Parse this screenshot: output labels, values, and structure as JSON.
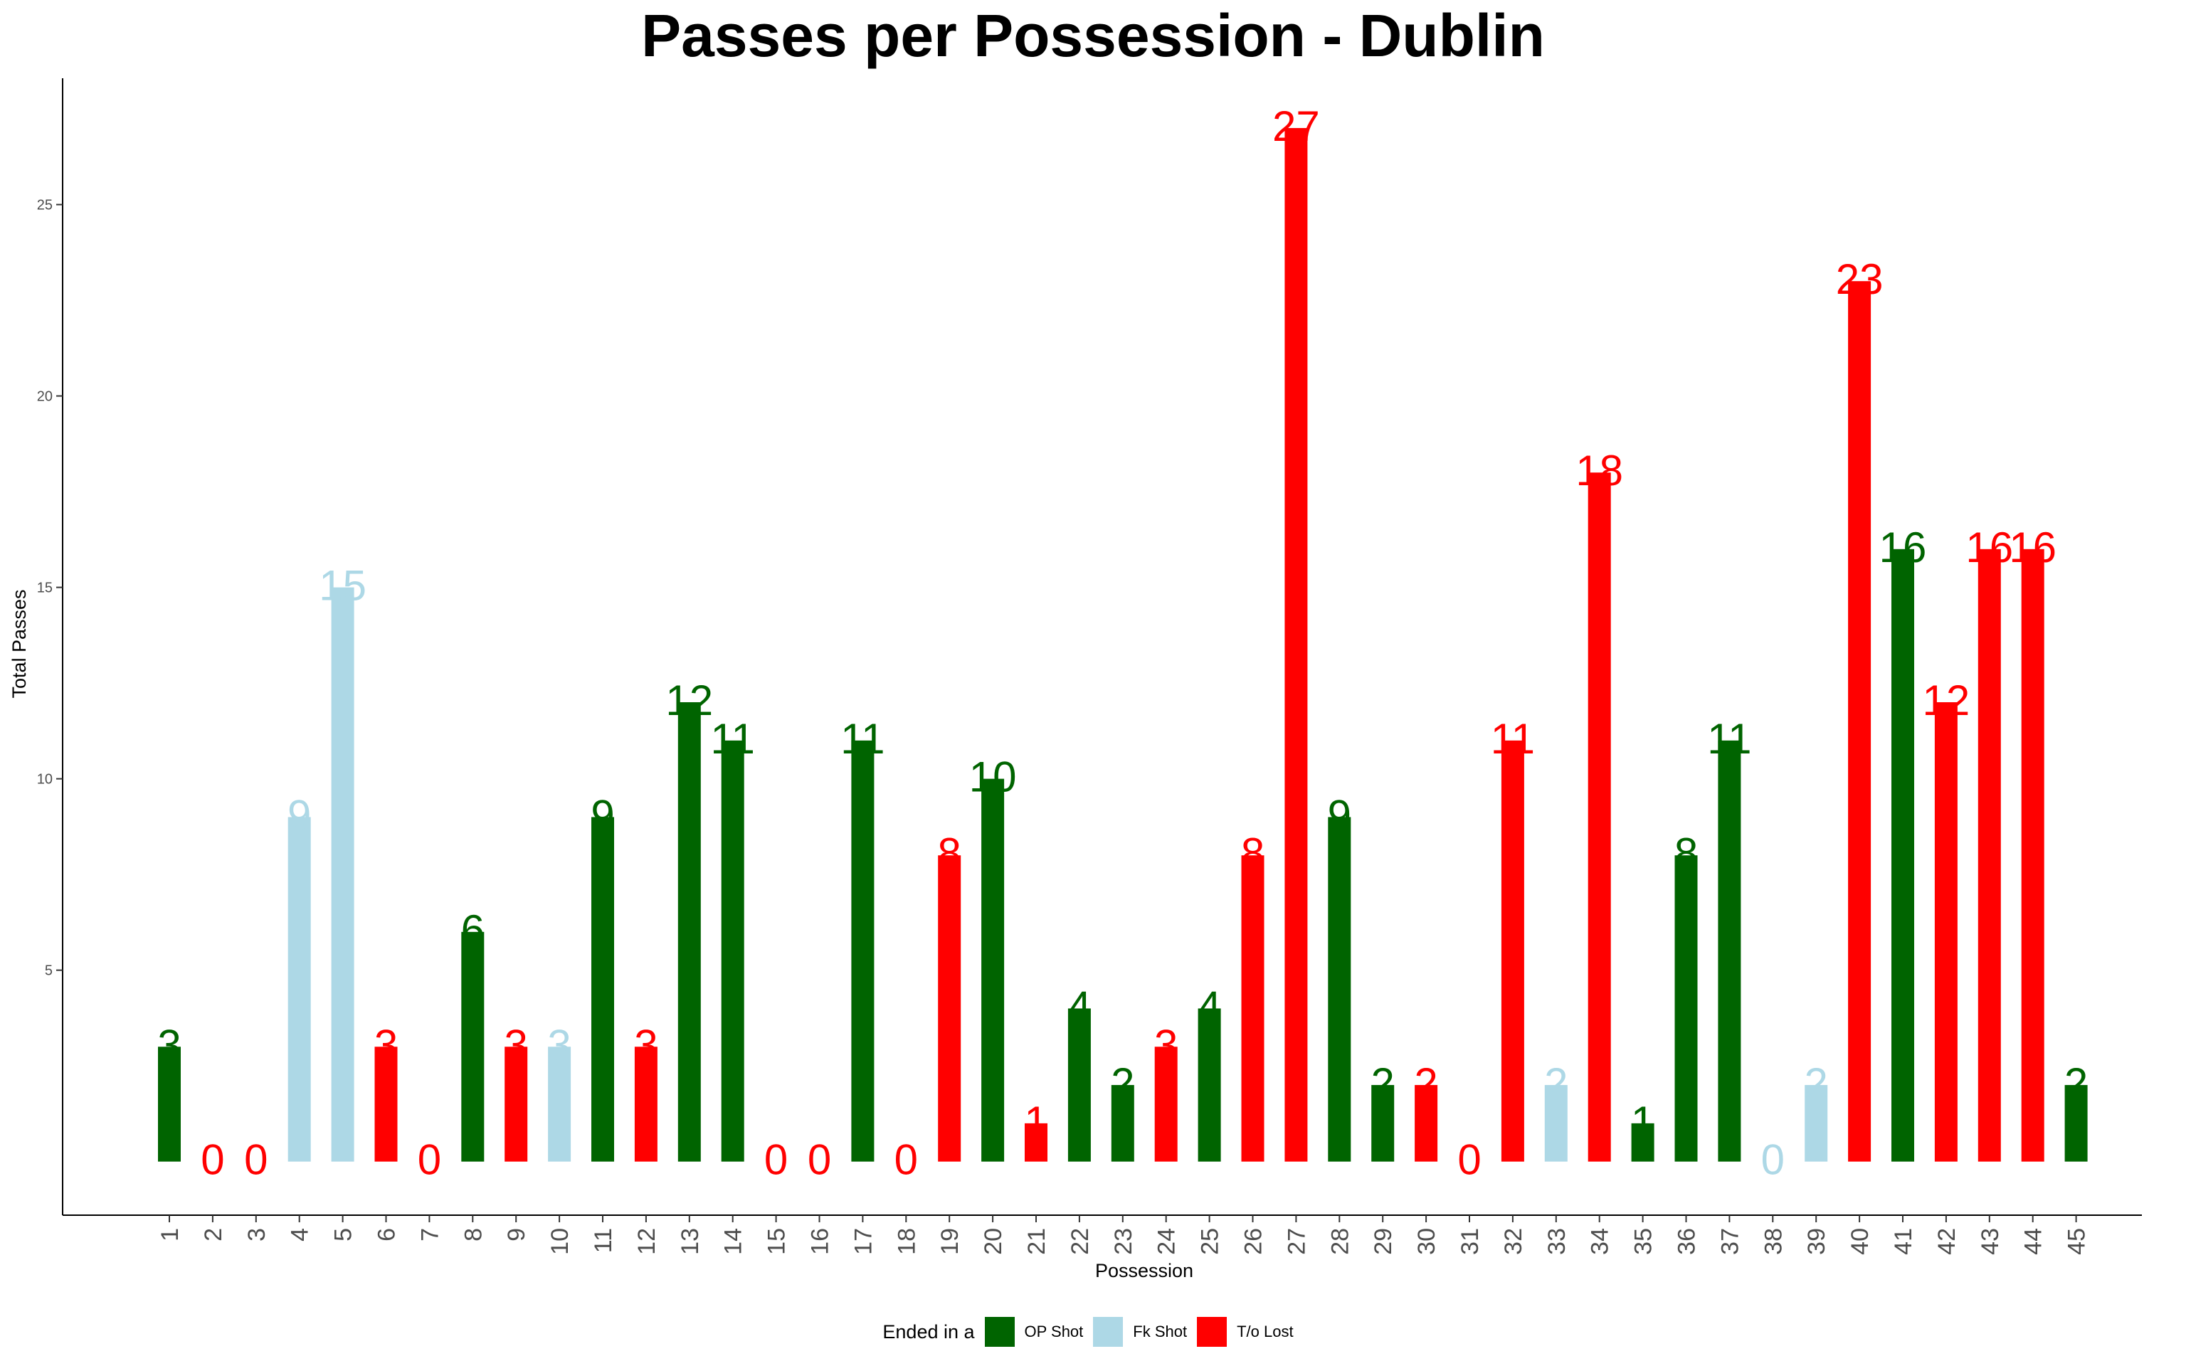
{
  "chart_data": {
    "type": "bar",
    "title": "Passes per Possession - Dublin",
    "xlabel": "Possession",
    "ylabel": "Total Passes",
    "ylim": [
      -1.4,
      28.3
    ],
    "yticks": [
      5,
      10,
      15,
      20,
      25
    ],
    "grid": false,
    "legend": {
      "title": "Ended in a",
      "placement": "bottom",
      "entries": [
        {
          "name": "OP Shot",
          "color": "#006400"
        },
        {
          "name": "Fk Shot",
          "color": "#ADD8E6"
        },
        {
          "name": "T/o Lost",
          "color": "#FF0000"
        }
      ]
    },
    "categories": [
      "1",
      "2",
      "3",
      "4",
      "5",
      "6",
      "7",
      "8",
      "9",
      "10",
      "11",
      "12",
      "13",
      "14",
      "15",
      "16",
      "17",
      "18",
      "19",
      "20",
      "21",
      "22",
      "23",
      "24",
      "25",
      "26",
      "27",
      "28",
      "29",
      "30",
      "31",
      "32",
      "33",
      "34",
      "35",
      "36",
      "37",
      "38",
      "39",
      "40",
      "41",
      "42",
      "43",
      "44",
      "45"
    ],
    "values": [
      3,
      0,
      0,
      9,
      15,
      3,
      0,
      6,
      3,
      3,
      9,
      3,
      12,
      11,
      0,
      0,
      11,
      0,
      8,
      10,
      1,
      4,
      2,
      3,
      4,
      8,
      27,
      9,
      2,
      2,
      0,
      11,
      2,
      18,
      1,
      8,
      11,
      0,
      2,
      23,
      16,
      12,
      16,
      16,
      2
    ],
    "ended_in": [
      "OP Shot",
      "T/o Lost",
      "T/o Lost",
      "Fk Shot",
      "Fk Shot",
      "T/o Lost",
      "T/o Lost",
      "OP Shot",
      "T/o Lost",
      "Fk Shot",
      "OP Shot",
      "T/o Lost",
      "OP Shot",
      "OP Shot",
      "T/o Lost",
      "T/o Lost",
      "OP Shot",
      "T/o Lost",
      "T/o Lost",
      "OP Shot",
      "T/o Lost",
      "OP Shot",
      "OP Shot",
      "T/o Lost",
      "OP Shot",
      "T/o Lost",
      "T/o Lost",
      "OP Shot",
      "OP Shot",
      "T/o Lost",
      "T/o Lost",
      "T/o Lost",
      "Fk Shot",
      "T/o Lost",
      "OP Shot",
      "OP Shot",
      "OP Shot",
      "Fk Shot",
      "Fk Shot",
      "T/o Lost",
      "OP Shot",
      "T/o Lost",
      "T/o Lost",
      "T/o Lost",
      "OP Shot"
    ]
  }
}
